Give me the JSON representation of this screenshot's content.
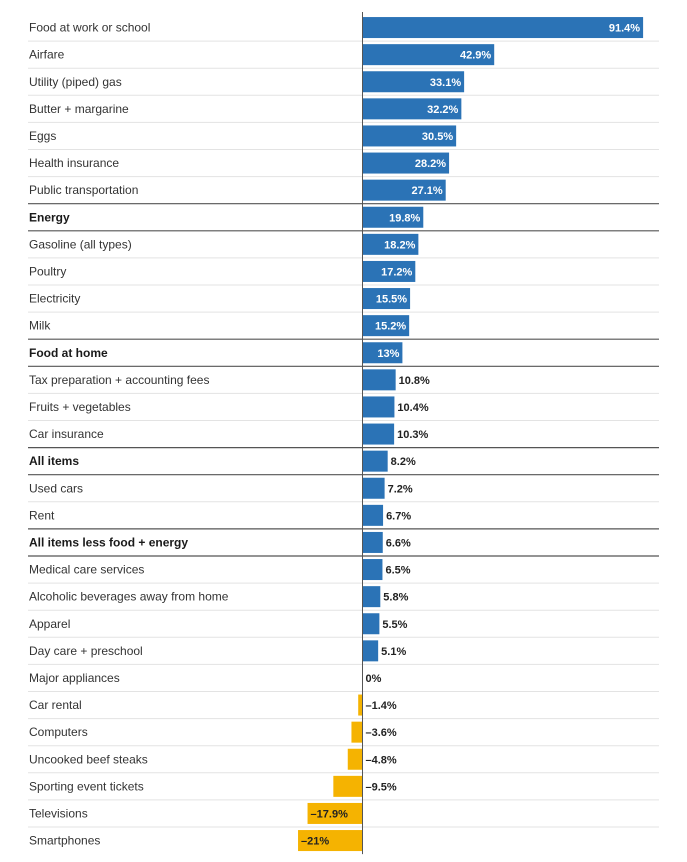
{
  "chart_data": {
    "type": "bar",
    "orientation": "horizontal",
    "unit": "%",
    "categories": [
      "Food at work or school",
      "Airfare",
      "Utility (piped) gas",
      "Butter + margarine",
      "Eggs",
      "Health insurance",
      "Public transportation",
      "Energy",
      "Gasoline (all types)",
      "Poultry",
      "Electricity",
      "Milk",
      "Food at home",
      "Tax preparation + accounting fees",
      "Fruits + vegetables",
      "Car insurance",
      "All items",
      "Used cars",
      "Rent",
      "All items less food + energy",
      "Medical care services",
      "Alcoholic beverages away from home",
      "Apparel",
      "Day care + preschool",
      "Major appliances",
      "Car rental",
      "Computers",
      "Uncooked beef steaks",
      "Sporting event tickets",
      "Televisions",
      "Smartphones"
    ],
    "values": [
      91.4,
      42.9,
      33.1,
      32.2,
      30.5,
      28.2,
      27.1,
      19.8,
      18.2,
      17.2,
      15.5,
      15.2,
      13,
      10.8,
      10.4,
      10.3,
      8.2,
      7.2,
      6.7,
      6.6,
      6.5,
      5.8,
      5.5,
      5.1,
      0,
      -1.4,
      -3.6,
      -4.8,
      -9.5,
      -17.9,
      -21
    ],
    "value_labels": [
      "91.4%",
      "42.9%",
      "33.1%",
      "32.2%",
      "30.5%",
      "28.2%",
      "27.1%",
      "19.8%",
      "18.2%",
      "17.2%",
      "15.5%",
      "15.2%",
      "13%",
      "10.8%",
      "10.4%",
      "10.3%",
      "8.2%",
      "7.2%",
      "6.7%",
      "6.6%",
      "6.5%",
      "5.8%",
      "5.5%",
      "5.1%",
      "0%",
      "–1.4%",
      "–3.6%",
      "–4.8%",
      "–9.5%",
      "–17.9%",
      "–21%"
    ],
    "highlighted_categories": [
      "Energy",
      "Food at home",
      "All items",
      "All items less food + energy"
    ],
    "xlim": [
      -21,
      91.4
    ],
    "colors": {
      "positive": "#2b73b6",
      "negative": "#f5b301",
      "label_text": "#333333",
      "value_on_bar": "#ffffff",
      "value_outside": "#222222",
      "divider": "#e3e3e3",
      "divider_highlight": "#555555",
      "zero_line": "#555555"
    }
  }
}
